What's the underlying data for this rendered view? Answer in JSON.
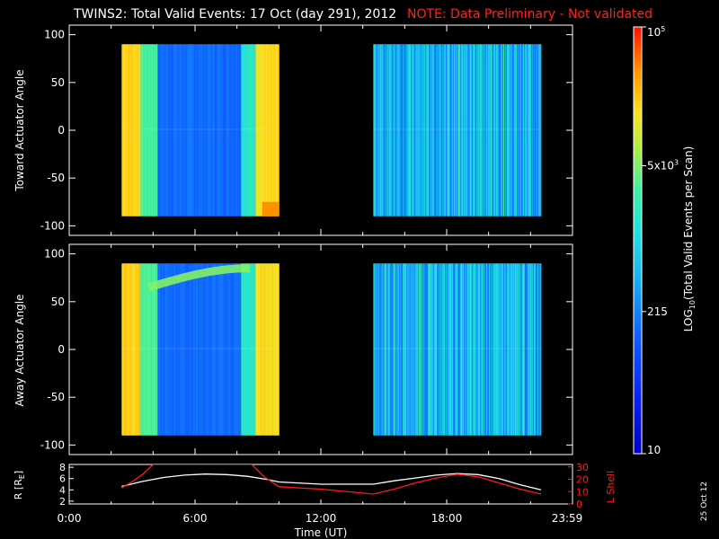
{
  "header": {
    "title": "TWINS2: Total Valid Events: 17 Oct (day 291), 2012",
    "note": "NOTE: Data Preliminary - Not validated",
    "note_color": "#ff2020"
  },
  "date_stamp": "25 Oct 12",
  "colors": {
    "background": "#000000",
    "axes": "#ffffff",
    "lshell_line": "#ff1a1a",
    "radius_line": "#ffffff"
  },
  "chart_data": [
    {
      "type": "heatmap",
      "ylabel": "Toward Actuator Angle",
      "ylim": [
        -110,
        110
      ],
      "yticks": [
        -100,
        -50,
        0,
        50,
        100
      ],
      "xlim": [
        0,
        24
      ],
      "grid": false,
      "data_blocks": [
        {
          "start_hour": 2.5,
          "end_hour": 10.0
        },
        {
          "start_hour": 14.5,
          "end_hour": 22.5
        }
      ],
      "angle_range": [
        -90,
        90
      ]
    },
    {
      "type": "heatmap",
      "ylabel": "Away Actuator Angle",
      "ylim": [
        -110,
        110
      ],
      "yticks": [
        -100,
        -50,
        0,
        50,
        100
      ],
      "xlim": [
        0,
        24
      ],
      "grid": false,
      "data_blocks": [
        {
          "start_hour": 2.5,
          "end_hour": 10.0
        },
        {
          "start_hour": 14.5,
          "end_hour": 22.5
        }
      ],
      "angle_range": [
        -90,
        90
      ]
    },
    {
      "type": "line",
      "xlabel": "Time (UT)",
      "x_ticks": [
        "0:00",
        "6:00",
        "12:00",
        "18:00",
        "23:59"
      ],
      "xlim": [
        0,
        24
      ],
      "left_axis": {
        "label": "R [R",
        "label_sub": "E",
        "label_end": "]",
        "ticks": [
          "2",
          "4",
          "6",
          "8"
        ],
        "ylim": [
          1.5,
          8.5
        ]
      },
      "right_axis": {
        "label": "L Shell",
        "ticks": [
          "0",
          "10",
          "20",
          "30"
        ],
        "ylim": [
          0,
          32
        ]
      },
      "series": [
        {
          "axis": "left",
          "x": [
            2.5,
            3.5,
            4.5,
            5.5,
            6.5,
            7.5,
            8.5,
            9.5,
            10.0,
            12.0,
            14.5,
            15.5,
            16.5,
            17.5,
            18.5,
            19.5,
            20.5,
            21.5,
            22.5
          ],
          "y": [
            4.6,
            5.5,
            6.2,
            6.6,
            6.8,
            6.7,
            6.4,
            5.8,
            5.4,
            5.0,
            5.0,
            5.6,
            6.1,
            6.6,
            6.9,
            6.7,
            6.0,
            4.9,
            4.0
          ]
        },
        {
          "axis": "right",
          "x": [
            2.5,
            3.0,
            3.5,
            4.0,
            8.7,
            9.3,
            10.0,
            12.0,
            14.5,
            15.5,
            16.5,
            17.5,
            18.5,
            19.5,
            20.5,
            21.5,
            22.5
          ],
          "y": [
            13,
            18,
            24,
            32,
            32,
            22,
            14,
            12,
            8,
            12,
            17,
            21,
            24,
            22,
            17,
            12,
            8
          ]
        }
      ]
    }
  ],
  "colorbar": {
    "label": "LOG",
    "label_sub": "10",
    "label_end": "(Total Valid Events per Scan)",
    "ticks": [
      {
        "value": 10,
        "text": "10"
      },
      {
        "value": 215,
        "text": "215"
      },
      {
        "value": 5000,
        "text": "5x10",
        "sup": "3"
      },
      {
        "value": 100000,
        "text": "10",
        "sup": "5"
      }
    ],
    "range": [
      10,
      100000
    ],
    "scale": "log"
  }
}
